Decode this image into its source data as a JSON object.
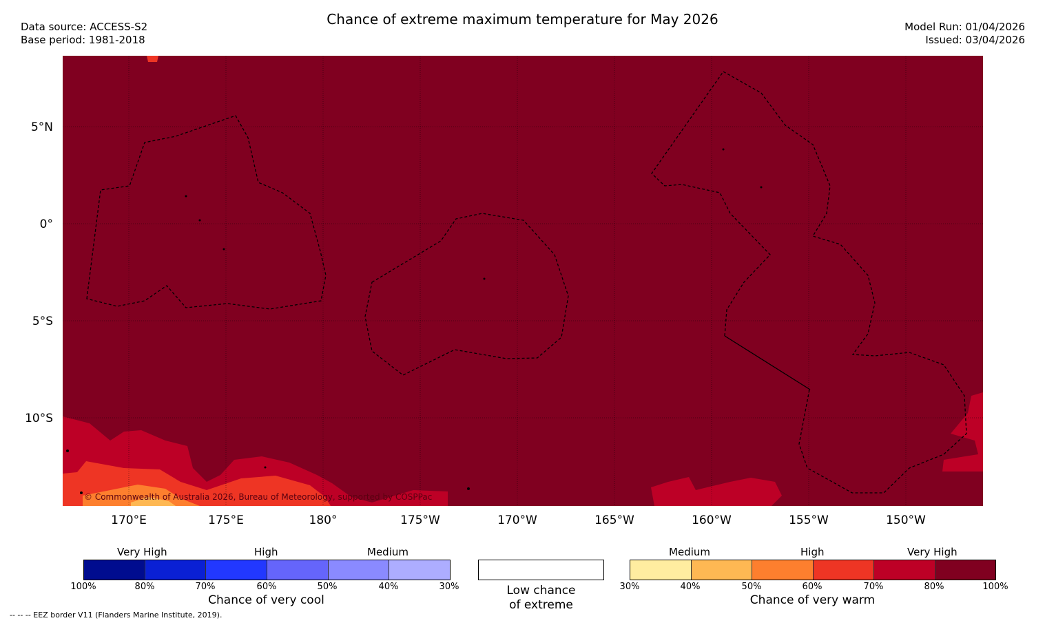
{
  "header": {
    "title": "Chance of extreme maximum temperature for May 2026",
    "data_source": "Data source: ACCESS-S2",
    "base_period": "Base period: 1981-2018",
    "model_run": "Model Run: 01/04/2026",
    "issued": "Issued: 03/04/2026"
  },
  "map": {
    "lon_labels": [
      "170°E",
      "175°E",
      "180°",
      "175°W",
      "170°W",
      "165°W",
      "160°W",
      "155°W",
      "150°W"
    ],
    "lat_labels": [
      "5°N",
      "0°",
      "5°S",
      "10°S"
    ],
    "copyright": "© Commonwealth of Australia 2026, Bureau of Meteorology, supported by COSPPac"
  },
  "legend_cool": {
    "categories": [
      "Very High",
      "High",
      "Medium"
    ],
    "ticks": [
      "100%",
      "80%",
      "70%",
      "60%",
      "50%",
      "40%",
      "30%"
    ],
    "title": "Chance of very cool",
    "colors": [
      "#000c8f",
      "#0a20d4",
      "#2238ff",
      "#6565fb",
      "#8a8aff",
      "#adadff"
    ]
  },
  "legend_neutral": {
    "line1": "Low chance",
    "line2": "of extreme"
  },
  "legend_warm": {
    "categories": [
      "Medium",
      "High",
      "Very High"
    ],
    "ticks": [
      "30%",
      "40%",
      "50%",
      "60%",
      "70%",
      "80%",
      "100%"
    ],
    "title": "Chance of very warm",
    "colors": [
      "#ffeda0",
      "#feb853",
      "#fd7f2e",
      "#ee3524",
      "#bd0026",
      "#800020"
    ]
  },
  "footer": {
    "eez_note": "--  --  -- EEZ border V11 (Flanders Marine Institute, 2019)."
  }
}
